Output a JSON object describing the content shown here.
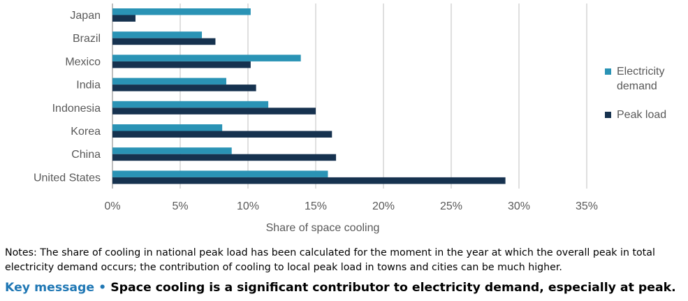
{
  "chart_data": {
    "type": "bar",
    "orientation": "horizontal",
    "categories": [
      "Japan",
      "Brazil",
      "Mexico",
      "India",
      "Indonesia",
      "Korea",
      "China",
      "United States"
    ],
    "series": [
      {
        "name": "Electricity demand",
        "color": "#2a93b5",
        "values": [
          10.2,
          6.6,
          13.9,
          8.4,
          11.5,
          8.1,
          8.8,
          15.9
        ]
      },
      {
        "name": "Peak load",
        "color": "#16324f",
        "values": [
          1.7,
          7.6,
          10.2,
          10.6,
          15.0,
          16.2,
          16.5,
          29.0
        ]
      }
    ],
    "xlim": [
      0,
      35
    ],
    "xticks": [
      "0%",
      "5%",
      "10%",
      "15%",
      "20%",
      "25%",
      "30%",
      "35%"
    ],
    "xlabel": "Share of space cooling",
    "ylabel": "",
    "title": "",
    "grid": "vertical",
    "legend_position": "right"
  },
  "legend": {
    "electricity_line1": "Electricity",
    "electricity_line2": "demand",
    "peak": "Peak load"
  },
  "notes": "Notes: The share of cooling in national peak load has been calculated for the moment in the year at which the overall peak in total electricity demand occurs; the contribution of cooling to local peak load in towns and cities can be much higher.",
  "key_message": {
    "label": "Key message •",
    "text": "Space cooling is a significant contributor to electricity demand, especially at peak."
  }
}
